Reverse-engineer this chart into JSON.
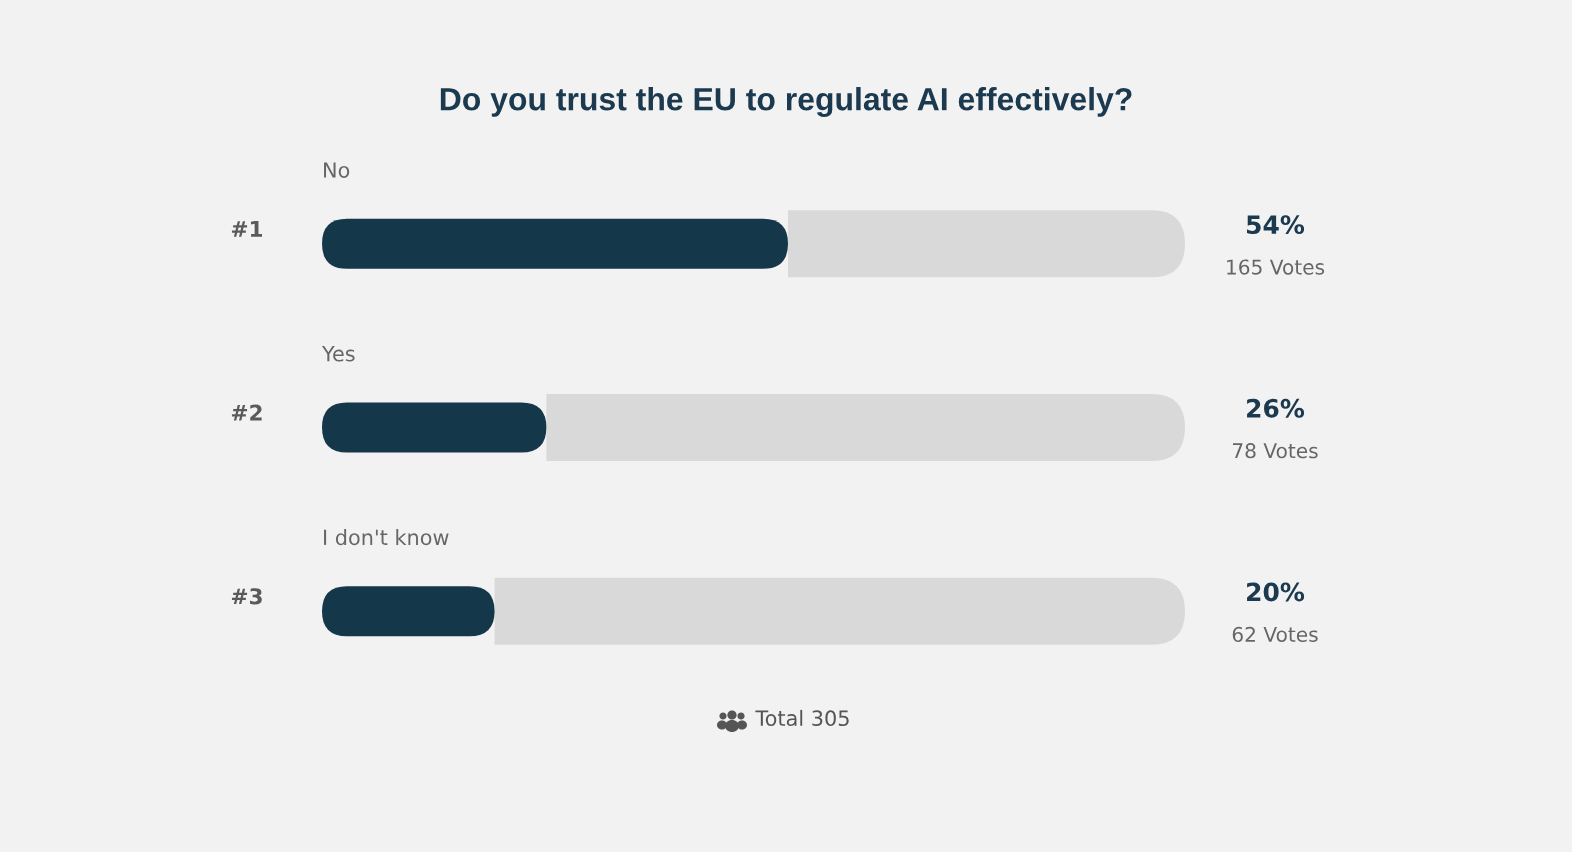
{
  "chart_data": {
    "type": "bar",
    "orientation": "horizontal",
    "stacked": true,
    "title": "Do you trust the EU to regulate AI effectively?",
    "categories": [
      "No",
      "Yes",
      "I don't know"
    ],
    "series": [
      {
        "color": "#14374a",
        "values": [
          54,
          26,
          20
        ],
        "value_labels": [
          "54%",
          "26%",
          "20%"
        ]
      },
      {
        "color": "#d9d9d9",
        "values": [
          46,
          74,
          80
        ]
      }
    ],
    "xlim": [
      0,
      100
    ],
    "tick_labels": false,
    "annotations": [
      "#1",
      "#2",
      "#3",
      "165 Votes",
      "78 Votes",
      "62 Votes",
      "Total 305"
    ]
  }
}
